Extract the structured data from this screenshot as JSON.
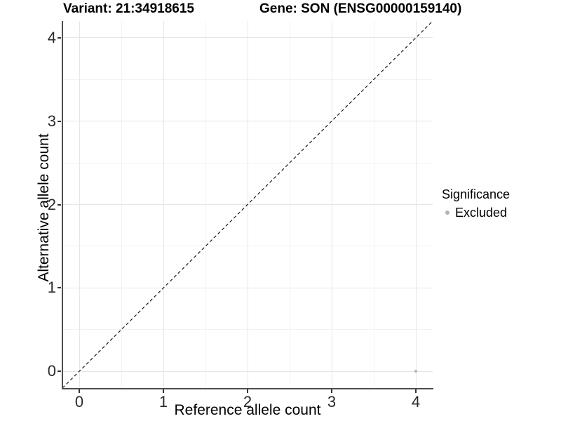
{
  "figure_titles": {
    "variant": "Variant: 21:34918615",
    "gene": "Gene: SON (ENSG00000159140)"
  },
  "chart_data": {
    "type": "scatter",
    "titles": [
      "Variant: 21:34918615",
      "Gene: SON (ENSG00000159140)"
    ],
    "xlabel": "Reference allele count",
    "ylabel": "Alternative allele count",
    "xlim": [
      -0.2,
      4.2
    ],
    "ylim": [
      -0.2,
      4.2
    ],
    "xticks": [
      0,
      1,
      2,
      3,
      4
    ],
    "yticks": [
      0,
      1,
      2,
      3,
      4
    ],
    "grid": {
      "on": true,
      "major": [
        0,
        1,
        2,
        3,
        4
      ],
      "minor": [
        0.5,
        1.5,
        2.5,
        3.5
      ],
      "major_color": "#e6e6e6",
      "minor_color": "#f2f2f2"
    },
    "identity_line": {
      "style": "dashed",
      "slope": 1,
      "intercept": 0,
      "from": [
        -0.2,
        -0.2
      ],
      "to": [
        4.2,
        4.2
      ],
      "color": "#1a1a1a"
    },
    "series": [
      {
        "name": "Excluded",
        "color": "#b3b3b3",
        "points": [
          {
            "x": 4,
            "y": 0
          }
        ]
      }
    ],
    "legend": {
      "title": "Significance",
      "position": "right",
      "entries": [
        {
          "label": "Excluded",
          "color": "#b3b3b3"
        }
      ]
    },
    "colors": {
      "axis_line": "#4d4d4d",
      "tick_mark": "#333333",
      "tick_text": "#2b2b2b",
      "background": "#ffffff"
    }
  }
}
